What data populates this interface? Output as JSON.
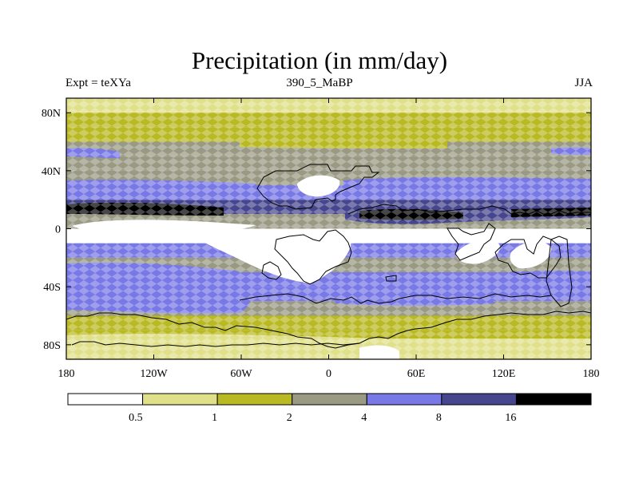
{
  "title": "Precipitation (in mm/day)",
  "left_string": "Expt = teXYa",
  "center_string": "390_5_MaBP",
  "right_string": "JJA",
  "chart_data": {
    "type": "heatmap",
    "title": "Precipitation (in mm/day)",
    "x_ticks": [
      "180",
      "120W",
      "60W",
      "0",
      "60E",
      "120E",
      "180"
    ],
    "x_tick_values": [
      -180,
      -120,
      -60,
      0,
      60,
      120,
      180
    ],
    "y_ticks": [
      "80N",
      "40N",
      "0",
      "40S",
      "80S"
    ],
    "y_tick_values": [
      80,
      40,
      0,
      -40,
      -80
    ],
    "xlim": [
      -180,
      180
    ],
    "ylim": [
      -90,
      90
    ],
    "colorbar": {
      "levels": [
        0.5,
        1,
        2,
        4,
        8,
        16
      ],
      "level_labels": [
        "0.5",
        "1",
        "2",
        "4",
        "8",
        "16"
      ],
      "colors": [
        "#ffffff",
        "#e0e08a",
        "#b9b923",
        "#9a9a84",
        "#7878e6",
        "#46468e",
        "#000000"
      ]
    },
    "latitudes": [
      85,
      75,
      65,
      55,
      45,
      35,
      25,
      15,
      5,
      -5,
      -15,
      -25,
      -35,
      -45,
      -55,
      -65,
      -75,
      -85
    ],
    "zonal_band_class_index": [
      1,
      2,
      2,
      3,
      3,
      3,
      4,
      5,
      3,
      0,
      4,
      3,
      4,
      4,
      3,
      2,
      2,
      1
    ]
  }
}
